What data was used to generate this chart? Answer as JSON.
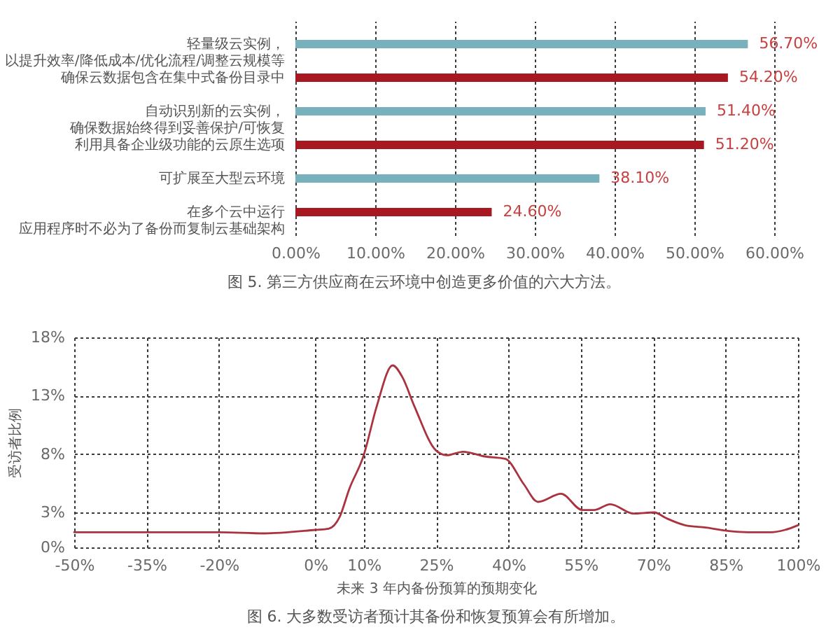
{
  "chart_data": [
    {
      "type": "bar",
      "orientation": "horizontal",
      "title": "图 5. 第三方供应商在云环境中创造更多价值的六大方法。",
      "categories": [
        "轻量级云实例，以提升效率/降低成本/优化流程/调整云规模等",
        "确保云数据包含在集中式备份目录中",
        "自动识别新的云实例，确保数据始终得到妥善保护/可恢复",
        "利用具备企业级功能的云原生选项",
        "可扩展至大型云环境",
        "在多个云中运行应用程序时不必为了备份而复制云基础架构"
      ],
      "values": [
        56.7,
        54.2,
        51.4,
        51.2,
        38.1,
        24.6
      ],
      "colors": [
        "#78b0bc",
        "#a81820",
        "#78b0bc",
        "#a81820",
        "#78b0bc",
        "#a81820"
      ],
      "value_labels": [
        "56.70%",
        "54.20%",
        "51.40%",
        "51.20%",
        "38.10%",
        "24.60%"
      ],
      "xlim": [
        0,
        60
      ],
      "xticks": [
        {
          "value": 0,
          "label": "0.00%"
        },
        {
          "value": 10,
          "label": "10.00%"
        },
        {
          "value": 20,
          "label": "20.00%"
        },
        {
          "value": 30,
          "label": "30.00%"
        },
        {
          "value": 40,
          "label": "40.00%"
        },
        {
          "value": 50,
          "label": "50.00%"
        },
        {
          "value": 60,
          "label": "60.00%"
        }
      ],
      "grid": "x"
    },
    {
      "type": "line",
      "title": "图 6. 大多数受访者预计其备份和恢复预算会有所增加。",
      "xlabel": "未来 3 年内备份预算的预期变化",
      "ylabel": "受访者比例",
      "x": [
        -50,
        -35,
        -20,
        -10.7,
        0,
        2.7,
        5,
        7,
        10,
        12.7,
        16,
        18,
        20.5,
        25,
        27.2,
        30.6,
        35,
        39.3,
        43.2,
        46.1,
        50.9,
        55.3,
        57.7,
        61.1,
        65.9,
        70.2,
        72.7,
        76.6,
        80.9,
        85.7,
        89.6,
        94.4,
        97.3,
        100
      ],
      "series": [
        {
          "color": "#aa3340",
          "values": [
            1.3,
            1.3,
            1.3,
            1.2,
            1.5,
            1.6,
            2.6,
            5.0,
            7.9,
            12.1,
            15.6,
            14.6,
            12.1,
            8.3,
            7.9,
            8.2,
            7.8,
            7.6,
            5.4,
            3.9,
            4.6,
            3.2,
            3.2,
            3.7,
            2.9,
            3.0,
            2.5,
            1.9,
            1.7,
            1.4,
            1.3,
            1.3,
            1.5,
            1.9
          ]
        }
      ],
      "xlim": [
        -50,
        100
      ],
      "xticks": [
        {
          "value": -50,
          "label": "-50%"
        },
        {
          "value": -35,
          "label": "-35%"
        },
        {
          "value": -20,
          "label": "-20%"
        },
        {
          "value": 0,
          "label": "0%"
        },
        {
          "value": 10,
          "label": "10%"
        },
        {
          "value": 25,
          "label": "25%"
        },
        {
          "value": 40,
          "label": "40%"
        },
        {
          "value": 55,
          "label": "55%"
        },
        {
          "value": 70,
          "label": "70%"
        },
        {
          "value": 85,
          "label": "85%"
        },
        {
          "value": 100,
          "label": "100%"
        }
      ],
      "ylim": [
        0,
        18
      ],
      "yticks": [
        {
          "value": 0,
          "label": "0%"
        },
        {
          "value": 3,
          "label": "3%"
        },
        {
          "value": 8,
          "label": "8%"
        },
        {
          "value": 13,
          "label": "13%"
        },
        {
          "value": 18,
          "label": "18%"
        }
      ],
      "grid": true
    }
  ]
}
